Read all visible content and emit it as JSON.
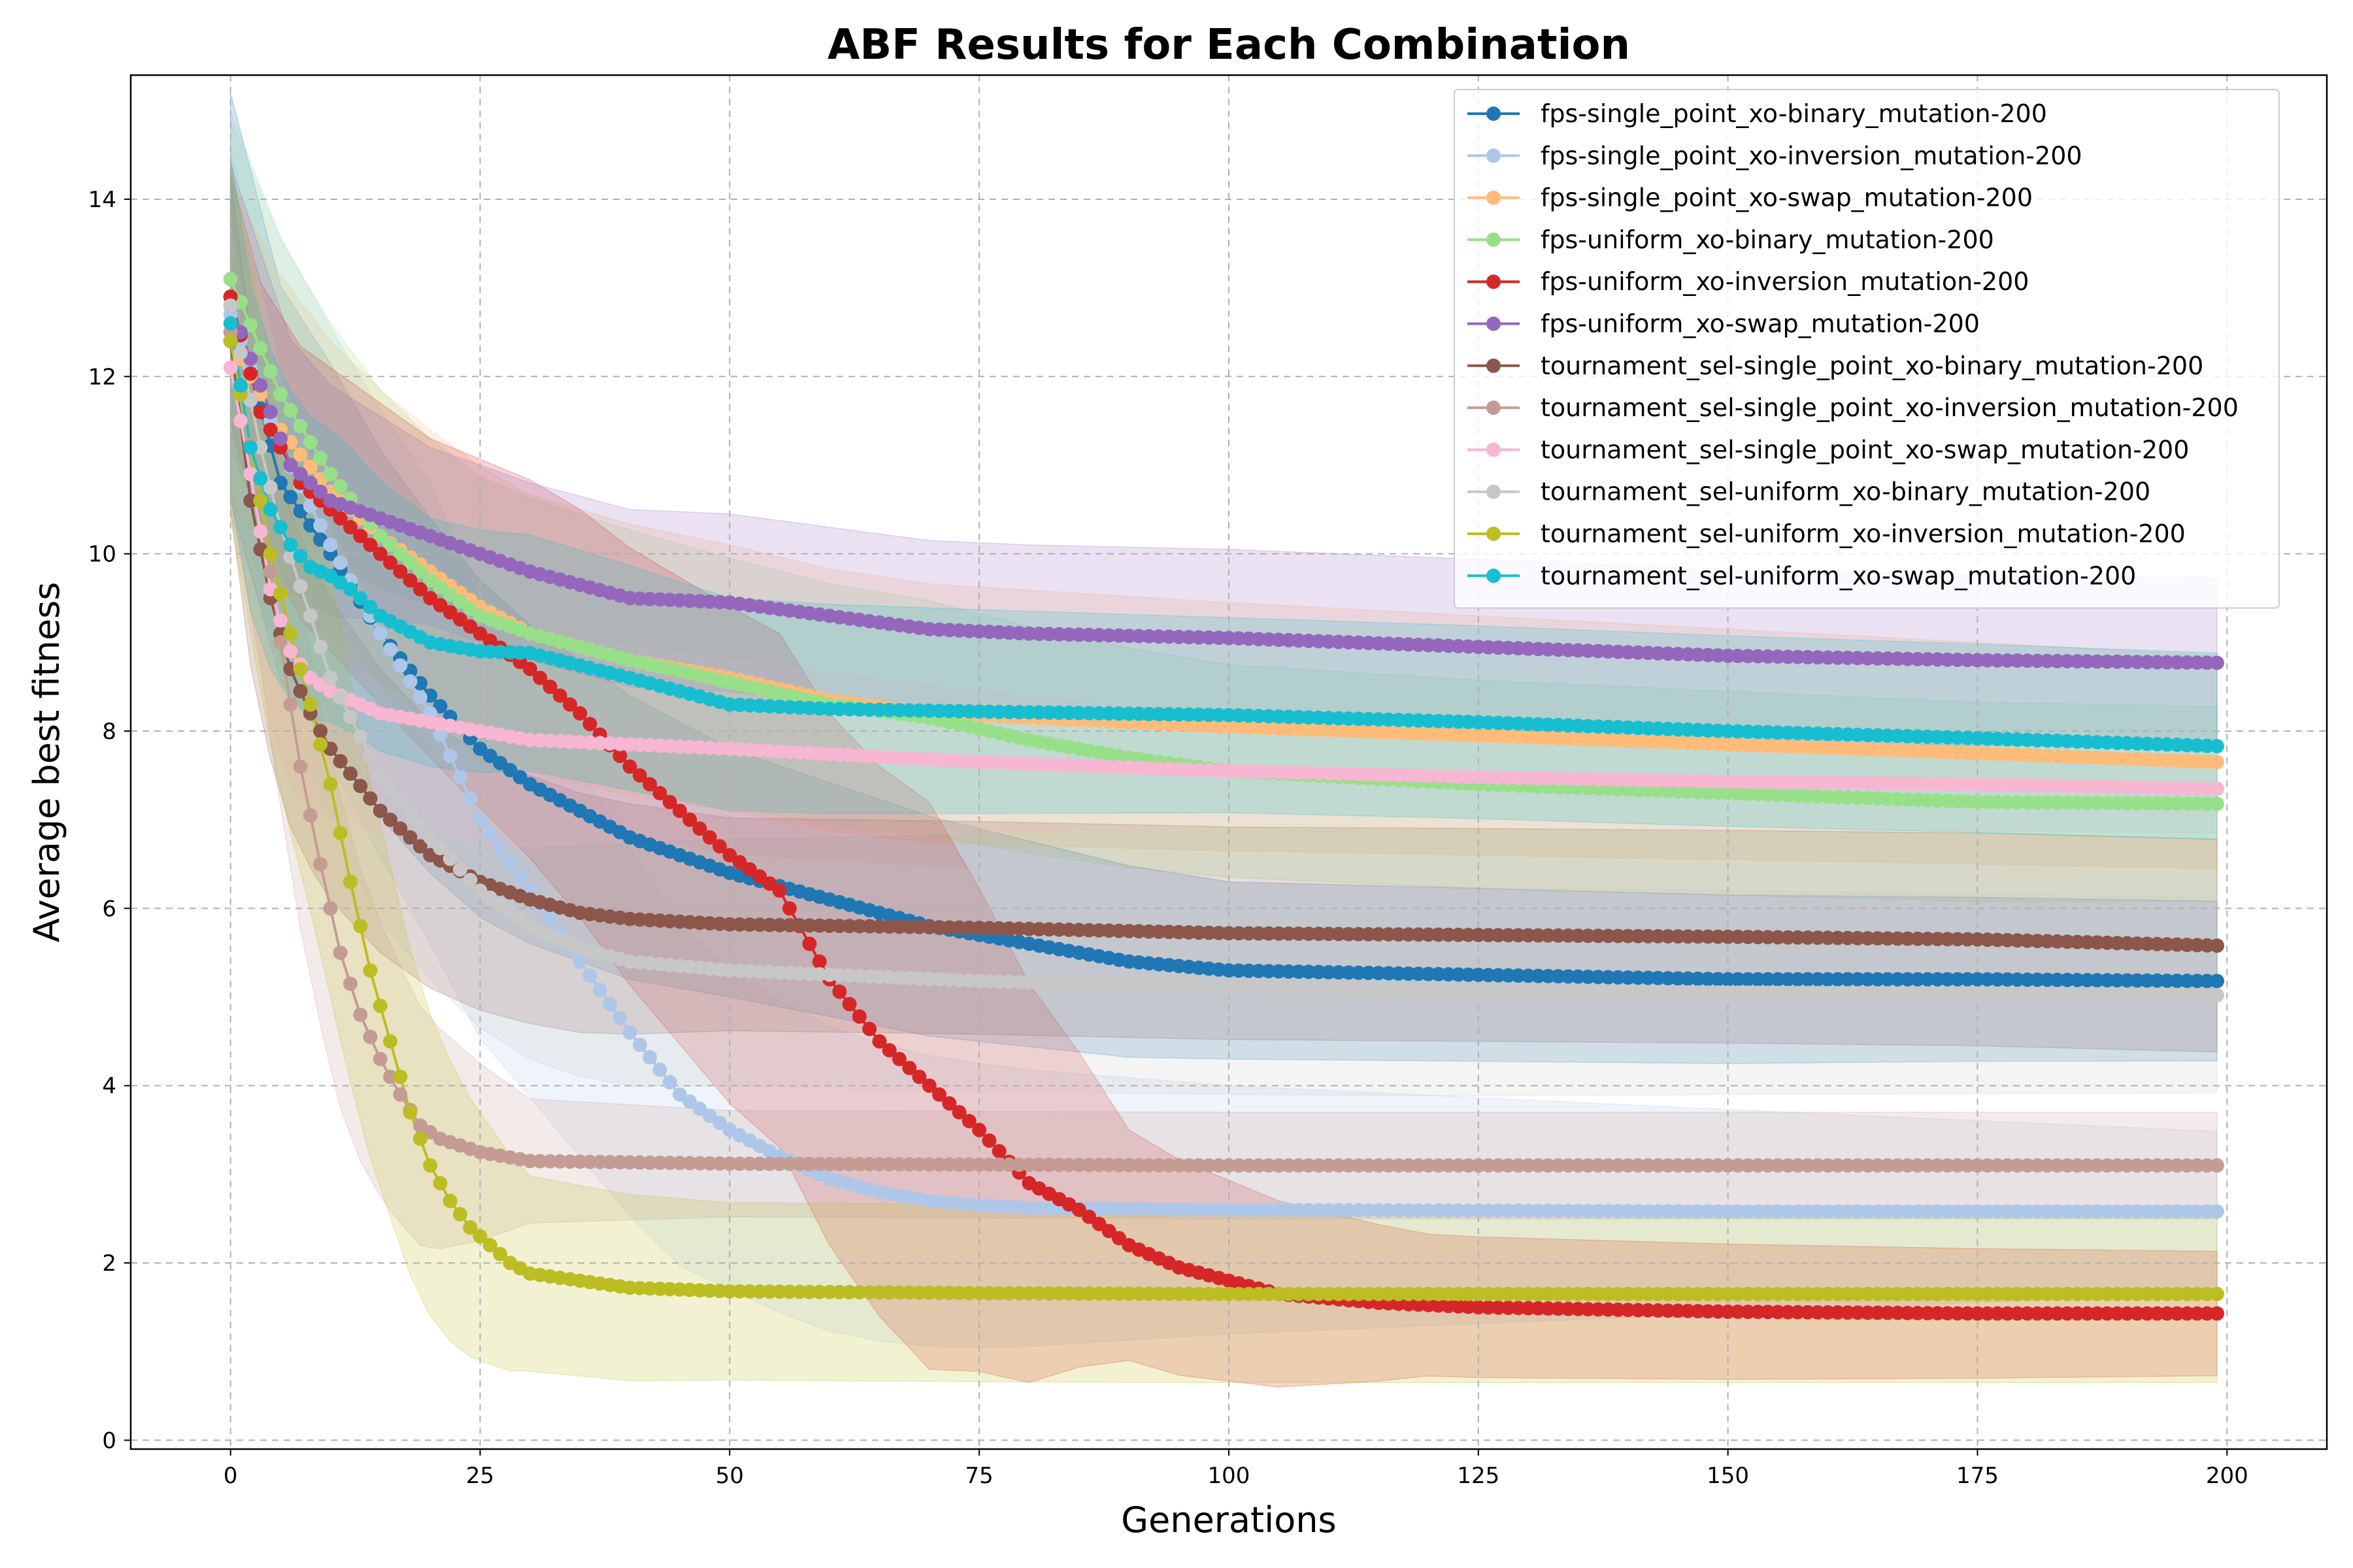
{
  "chart_data": {
    "type": "line",
    "title": "ABF Results for Each Combination",
    "xlabel": "Generations",
    "ylabel": "Average best fitness",
    "xlim": [
      -10,
      210
    ],
    "ylim": [
      -0.1,
      15.4
    ],
    "xticks": [
      0,
      25,
      50,
      75,
      100,
      125,
      150,
      175,
      200
    ],
    "yticks": [
      0,
      2,
      4,
      6,
      8,
      10,
      12,
      14
    ],
    "grid": true,
    "legend_position": "top-right",
    "generations": 200,
    "series": [
      {
        "name": "fps-single_point_xo-binary_mutation-200",
        "color": "#1f77b4",
        "points": [
          [
            0,
            12.9
          ],
          [
            5,
            10.8
          ],
          [
            10,
            10.0
          ],
          [
            15,
            9.1
          ],
          [
            20,
            8.4
          ],
          [
            25,
            7.8
          ],
          [
            30,
            7.4
          ],
          [
            40,
            6.8
          ],
          [
            50,
            6.4
          ],
          [
            60,
            6.1
          ],
          [
            70,
            5.8
          ],
          [
            80,
            5.6
          ],
          [
            90,
            5.4
          ],
          [
            100,
            5.3
          ],
          [
            125,
            5.25
          ],
          [
            150,
            5.2
          ],
          [
            175,
            5.2
          ],
          [
            199,
            5.18
          ]
        ],
        "band": [
          [
            0,
            2.3
          ],
          [
            20,
            2.0
          ],
          [
            50,
            1.4
          ],
          [
            100,
            1.0
          ],
          [
            200,
            0.9
          ]
        ]
      },
      {
        "name": "fps-single_point_xo-inversion_mutation-200",
        "color": "#aec7e8",
        "points": [
          [
            0,
            12.7
          ],
          [
            5,
            11.2
          ],
          [
            10,
            10.1
          ],
          [
            15,
            9.1
          ],
          [
            20,
            8.2
          ],
          [
            25,
            7.0
          ],
          [
            30,
            6.2
          ],
          [
            35,
            5.4
          ],
          [
            40,
            4.6
          ],
          [
            45,
            3.9
          ],
          [
            50,
            3.5
          ],
          [
            55,
            3.2
          ],
          [
            60,
            2.95
          ],
          [
            65,
            2.8
          ],
          [
            70,
            2.7
          ],
          [
            75,
            2.65
          ],
          [
            80,
            2.62
          ],
          [
            100,
            2.6
          ],
          [
            150,
            2.58
          ],
          [
            199,
            2.58
          ]
        ],
        "band": [
          [
            0,
            2.3
          ],
          [
            20,
            2.6
          ],
          [
            50,
            1.8
          ],
          [
            100,
            1.4
          ],
          [
            200,
            0.9
          ]
        ]
      },
      {
        "name": "fps-single_point_xo-swap_mutation-200",
        "color": "#ffbb78",
        "points": [
          [
            0,
            12.4
          ],
          [
            5,
            11.4
          ],
          [
            10,
            10.7
          ],
          [
            15,
            10.2
          ],
          [
            20,
            9.8
          ],
          [
            25,
            9.4
          ],
          [
            30,
            9.1
          ],
          [
            40,
            8.8
          ],
          [
            50,
            8.6
          ],
          [
            60,
            8.35
          ],
          [
            70,
            8.2
          ],
          [
            80,
            8.15
          ],
          [
            100,
            8.05
          ],
          [
            125,
            7.95
          ],
          [
            150,
            7.85
          ],
          [
            175,
            7.75
          ],
          [
            199,
            7.65
          ]
        ],
        "band": [
          [
            0,
            1.8
          ],
          [
            20,
            1.6
          ],
          [
            50,
            1.5
          ],
          [
            100,
            1.4
          ],
          [
            200,
            1.2
          ]
        ]
      },
      {
        "name": "fps-uniform_xo-binary_mutation-200",
        "color": "#98df8a",
        "points": [
          [
            0,
            13.1
          ],
          [
            5,
            11.8
          ],
          [
            10,
            10.9
          ],
          [
            15,
            10.2
          ],
          [
            20,
            9.7
          ],
          [
            25,
            9.3
          ],
          [
            30,
            9.1
          ],
          [
            40,
            8.8
          ],
          [
            50,
            8.55
          ],
          [
            60,
            8.3
          ],
          [
            70,
            8.15
          ],
          [
            80,
            7.9
          ],
          [
            90,
            7.7
          ],
          [
            100,
            7.55
          ],
          [
            125,
            7.4
          ],
          [
            150,
            7.3
          ],
          [
            175,
            7.2
          ],
          [
            199,
            7.18
          ]
        ],
        "band": [
          [
            0,
            1.8
          ],
          [
            20,
            1.6
          ],
          [
            50,
            1.4
          ],
          [
            100,
            1.2
          ],
          [
            200,
            1.1
          ]
        ]
      },
      {
        "name": "fps-uniform_xo-inversion_mutation-200",
        "color": "#d62728",
        "points": [
          [
            0,
            12.9
          ],
          [
            3,
            11.6
          ],
          [
            7,
            10.8
          ],
          [
            10,
            10.5
          ],
          [
            15,
            10.0
          ],
          [
            20,
            9.5
          ],
          [
            25,
            9.1
          ],
          [
            30,
            8.7
          ],
          [
            35,
            8.2
          ],
          [
            40,
            7.6
          ],
          [
            45,
            7.1
          ],
          [
            50,
            6.6
          ],
          [
            55,
            6.2
          ],
          [
            60,
            5.2
          ],
          [
            65,
            4.5
          ],
          [
            70,
            4.0
          ],
          [
            75,
            3.5
          ],
          [
            80,
            2.9
          ],
          [
            85,
            2.6
          ],
          [
            90,
            2.2
          ],
          [
            95,
            1.95
          ],
          [
            100,
            1.8
          ],
          [
            105,
            1.65
          ],
          [
            115,
            1.55
          ],
          [
            125,
            1.5
          ],
          [
            150,
            1.45
          ],
          [
            175,
            1.43
          ],
          [
            199,
            1.43
          ]
        ],
        "band": [
          [
            0,
            1.4
          ],
          [
            20,
            1.8
          ],
          [
            50,
            2.8
          ],
          [
            70,
            3.2
          ],
          [
            90,
            1.3
          ],
          [
            120,
            0.8
          ],
          [
            200,
            0.7
          ]
        ]
      },
      {
        "name": "fps-uniform_xo-swap_mutation-200",
        "color": "#9467bd",
        "points": [
          [
            0,
            12.8
          ],
          [
            3,
            11.9
          ],
          [
            6,
            11.0
          ],
          [
            10,
            10.6
          ],
          [
            15,
            10.4
          ],
          [
            20,
            10.2
          ],
          [
            25,
            10.0
          ],
          [
            30,
            9.8
          ],
          [
            40,
            9.5
          ],
          [
            50,
            9.45
          ],
          [
            60,
            9.3
          ],
          [
            70,
            9.15
          ],
          [
            80,
            9.1
          ],
          [
            100,
            9.05
          ],
          [
            125,
            8.95
          ],
          [
            150,
            8.85
          ],
          [
            175,
            8.8
          ],
          [
            199,
            8.77
          ]
        ],
        "band": [
          [
            0,
            1.6
          ],
          [
            20,
            1.0
          ],
          [
            50,
            1.0
          ],
          [
            100,
            1.0
          ],
          [
            200,
            0.95
          ]
        ]
      },
      {
        "name": "tournament_sel-single_point_xo-binary_mutation-200",
        "color": "#8c564b",
        "points": [
          [
            0,
            12.4
          ],
          [
            2,
            10.6
          ],
          [
            4,
            9.5
          ],
          [
            6,
            8.7
          ],
          [
            8,
            8.2
          ],
          [
            10,
            7.8
          ],
          [
            15,
            7.1
          ],
          [
            20,
            6.6
          ],
          [
            25,
            6.3
          ],
          [
            30,
            6.1
          ],
          [
            35,
            5.95
          ],
          [
            40,
            5.88
          ],
          [
            50,
            5.82
          ],
          [
            75,
            5.78
          ],
          [
            100,
            5.72
          ],
          [
            125,
            5.7
          ],
          [
            150,
            5.68
          ],
          [
            175,
            5.65
          ],
          [
            199,
            5.58
          ]
        ],
        "band": [
          [
            0,
            1.9
          ],
          [
            20,
            1.5
          ],
          [
            50,
            1.2
          ],
          [
            100,
            1.2
          ],
          [
            200,
            1.2
          ]
        ]
      },
      {
        "name": "tournament_sel-single_point_xo-inversion_mutation-200",
        "color": "#c49c94",
        "points": [
          [
            0,
            12.5
          ],
          [
            3,
            10.6
          ],
          [
            5,
            9.0
          ],
          [
            7,
            7.6
          ],
          [
            9,
            6.5
          ],
          [
            11,
            5.5
          ],
          [
            13,
            4.8
          ],
          [
            15,
            4.3
          ],
          [
            17,
            3.9
          ],
          [
            19,
            3.55
          ],
          [
            21,
            3.4
          ],
          [
            25,
            3.25
          ],
          [
            30,
            3.15
          ],
          [
            50,
            3.12
          ],
          [
            100,
            3.1
          ],
          [
            150,
            3.1
          ],
          [
            199,
            3.1
          ]
        ],
        "band": [
          [
            0,
            1.9
          ],
          [
            10,
            1.8
          ],
          [
            20,
            1.3
          ],
          [
            30,
            0.7
          ],
          [
            50,
            0.6
          ],
          [
            200,
            0.6
          ]
        ]
      },
      {
        "name": "tournament_sel-single_point_xo-swap_mutation-200",
        "color": "#f7b6d2",
        "points": [
          [
            0,
            12.1
          ],
          [
            2,
            10.9
          ],
          [
            4,
            9.6
          ],
          [
            6,
            8.9
          ],
          [
            8,
            8.6
          ],
          [
            10,
            8.45
          ],
          [
            15,
            8.2
          ],
          [
            20,
            8.1
          ],
          [
            25,
            8.0
          ],
          [
            30,
            7.9
          ],
          [
            40,
            7.85
          ],
          [
            50,
            7.8
          ],
          [
            75,
            7.65
          ],
          [
            100,
            7.55
          ],
          [
            125,
            7.48
          ],
          [
            150,
            7.43
          ],
          [
            175,
            7.4
          ],
          [
            199,
            7.35
          ]
        ],
        "band": [
          [
            0,
            1.6
          ],
          [
            20,
            1.3
          ],
          [
            50,
            1.0
          ],
          [
            100,
            0.6
          ],
          [
            200,
            0.5
          ]
        ]
      },
      {
        "name": "tournament_sel-uniform_xo-binary_mutation-200",
        "color": "#c7c7c7",
        "points": [
          [
            0,
            12.8
          ],
          [
            3,
            11.2
          ],
          [
            5,
            10.3
          ],
          [
            8,
            9.3
          ],
          [
            10,
            8.6
          ],
          [
            15,
            7.5
          ],
          [
            20,
            6.8
          ],
          [
            25,
            6.2
          ],
          [
            30,
            5.8
          ],
          [
            35,
            5.55
          ],
          [
            40,
            5.4
          ],
          [
            50,
            5.3
          ],
          [
            75,
            5.18
          ],
          [
            100,
            5.1
          ],
          [
            125,
            5.06
          ],
          [
            150,
            5.05
          ],
          [
            199,
            5.02
          ]
        ],
        "band": [
          [
            0,
            1.8
          ],
          [
            20,
            1.6
          ],
          [
            50,
            1.3
          ],
          [
            100,
            1.2
          ],
          [
            200,
            1.1
          ]
        ]
      },
      {
        "name": "tournament_sel-uniform_xo-inversion_mutation-200",
        "color": "#bcbd22",
        "points": [
          [
            0,
            12.4
          ],
          [
            2,
            11.2
          ],
          [
            4,
            10.0
          ],
          [
            6,
            9.1
          ],
          [
            8,
            8.3
          ],
          [
            10,
            7.4
          ],
          [
            12,
            6.3
          ],
          [
            14,
            5.3
          ],
          [
            16,
            4.5
          ],
          [
            18,
            3.7
          ],
          [
            20,
            3.1
          ],
          [
            22,
            2.7
          ],
          [
            24,
            2.4
          ],
          [
            26,
            2.2
          ],
          [
            28,
            2.0
          ],
          [
            30,
            1.88
          ],
          [
            35,
            1.8
          ],
          [
            40,
            1.72
          ],
          [
            50,
            1.68
          ],
          [
            75,
            1.66
          ],
          [
            100,
            1.65
          ],
          [
            150,
            1.65
          ],
          [
            199,
            1.65
          ]
        ],
        "band": [
          [
            0,
            2.0
          ],
          [
            10,
            2.4
          ],
          [
            20,
            1.7
          ],
          [
            30,
            1.1
          ],
          [
            50,
            1.0
          ],
          [
            200,
            1.0
          ]
        ]
      },
      {
        "name": "tournament_sel-uniform_xo-swap_mutation-200",
        "color": "#17becf",
        "points": [
          [
            0,
            12.6
          ],
          [
            2,
            11.2
          ],
          [
            4,
            10.5
          ],
          [
            6,
            10.1
          ],
          [
            8,
            9.85
          ],
          [
            10,
            9.75
          ],
          [
            12,
            9.6
          ],
          [
            15,
            9.3
          ],
          [
            20,
            9.0
          ],
          [
            25,
            8.9
          ],
          [
            30,
            8.88
          ],
          [
            40,
            8.6
          ],
          [
            45,
            8.45
          ],
          [
            50,
            8.3
          ],
          [
            60,
            8.25
          ],
          [
            75,
            8.22
          ],
          [
            100,
            8.18
          ],
          [
            125,
            8.1
          ],
          [
            150,
            8.0
          ],
          [
            175,
            7.92
          ],
          [
            199,
            7.83
          ]
        ],
        "band": [
          [
            0,
            1.9
          ],
          [
            20,
            1.4
          ],
          [
            50,
            1.2
          ],
          [
            100,
            1.1
          ],
          [
            200,
            1.05
          ]
        ]
      }
    ]
  }
}
